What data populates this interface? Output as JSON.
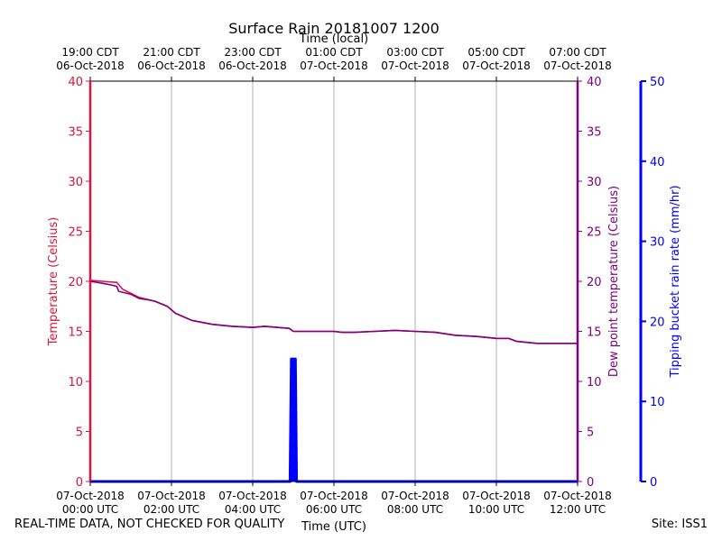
{
  "chart_data": {
    "type": "line",
    "title": "Surface Rain 20181007 1200",
    "top_axis_label": "Time (local)",
    "xlabel": "Time (UTC)",
    "ylabel_left": "Temperature (Celsius)",
    "ylabel_right": "Dew point temperature (Celsius)",
    "ylabel_far_right": "Tipping bucket rain rate (mm/hr)",
    "x_hours_range": [
      0,
      12
    ],
    "ylim": [
      0,
      40
    ],
    "ylim_rain": [
      0,
      50
    ],
    "y_ticks": [
      0,
      5,
      10,
      15,
      20,
      25,
      30,
      35,
      40
    ],
    "rain_ticks": [
      0,
      10,
      20,
      30,
      40,
      50
    ],
    "grid": true,
    "bottom_ticks": [
      {
        "hour": 0,
        "line1": "07-Oct-2018",
        "line2": "00:00 UTC"
      },
      {
        "hour": 2,
        "line1": "07-Oct-2018",
        "line2": "02:00 UTC"
      },
      {
        "hour": 4,
        "line1": "07-Oct-2018",
        "line2": "04:00 UTC"
      },
      {
        "hour": 6,
        "line1": "07-Oct-2018",
        "line2": "06:00 UTC"
      },
      {
        "hour": 8,
        "line1": "07-Oct-2018",
        "line2": "08:00 UTC"
      },
      {
        "hour": 10,
        "line1": "07-Oct-2018",
        "line2": "10:00 UTC"
      },
      {
        "hour": 12,
        "line1": "07-Oct-2018",
        "line2": "12:00 UTC"
      }
    ],
    "top_ticks": [
      {
        "hour": 0,
        "line1": "19:00 CDT",
        "line2": "06-Oct-2018"
      },
      {
        "hour": 2,
        "line1": "21:00 CDT",
        "line2": "06-Oct-2018"
      },
      {
        "hour": 4,
        "line1": "23:00 CDT",
        "line2": "06-Oct-2018"
      },
      {
        "hour": 6,
        "line1": "01:00 CDT",
        "line2": "07-Oct-2018"
      },
      {
        "hour": 8,
        "line1": "03:00 CDT",
        "line2": "07-Oct-2018"
      },
      {
        "hour": 10,
        "line1": "05:00 CDT",
        "line2": "07-Oct-2018"
      },
      {
        "hour": 12,
        "line1": "07:00 CDT",
        "line2": "07-Oct-2018"
      }
    ],
    "series": [
      {
        "name": "Temperature",
        "color": "#dc143c",
        "x": [
          0,
          0.3,
          0.6,
          0.65,
          0.8,
          1.0,
          1.2,
          1.5,
          1.6,
          1.9,
          2.1,
          2.5,
          3.0,
          3.5,
          4.0,
          4.3,
          4.6,
          4.9,
          5.0,
          5.3,
          5.8,
          6.0,
          6.2,
          6.5,
          7.0,
          7.5,
          8.0,
          8.5,
          9.0,
          9.5,
          10.0,
          10.3,
          10.5,
          11.0,
          11.5,
          12.0
        ],
        "values": [
          20.1,
          20.0,
          19.9,
          19.9,
          19.2,
          18.8,
          18.4,
          18.1,
          18.0,
          17.5,
          16.8,
          16.1,
          15.7,
          15.5,
          15.4,
          15.5,
          15.4,
          15.3,
          15.0,
          15.0,
          15.0,
          15.0,
          14.9,
          14.9,
          15.0,
          15.1,
          15.0,
          14.9,
          14.6,
          14.5,
          14.3,
          14.3,
          14.0,
          13.8,
          13.8,
          13.8
        ]
      },
      {
        "name": "Dew point temperature",
        "color": "#800080",
        "x": [
          0,
          0.3,
          0.55,
          0.65,
          0.7,
          1.0,
          1.2,
          1.5,
          1.6,
          1.9,
          2.1,
          2.5,
          3.0,
          3.5,
          4.0,
          4.3,
          4.6,
          4.9,
          5.0,
          5.3,
          5.8,
          6.0,
          6.2,
          6.5,
          7.0,
          7.5,
          8.0,
          8.5,
          9.0,
          9.5,
          10.0,
          10.3,
          10.5,
          11.0,
          11.5,
          12.0
        ],
        "values": [
          20.0,
          19.8,
          19.6,
          19.5,
          19.0,
          18.7,
          18.3,
          18.1,
          18.0,
          17.5,
          16.8,
          16.1,
          15.7,
          15.5,
          15.4,
          15.5,
          15.4,
          15.3,
          15.0,
          15.0,
          15.0,
          15.0,
          14.9,
          14.9,
          15.0,
          15.1,
          15.0,
          14.9,
          14.6,
          14.5,
          14.3,
          14.3,
          14.0,
          13.8,
          13.8,
          13.8
        ]
      },
      {
        "name": "Tipping bucket rain rate",
        "color": "#0000ff",
        "x": [
          0,
          4.92,
          4.95,
          5.05,
          5.08,
          12.0
        ],
        "values": [
          0,
          0,
          15.3,
          15.3,
          0,
          0
        ]
      }
    ]
  },
  "footer": {
    "left_note": "REAL-TIME DATA, NOT CHECKED FOR QUALITY",
    "site": "Site: ISS1"
  }
}
